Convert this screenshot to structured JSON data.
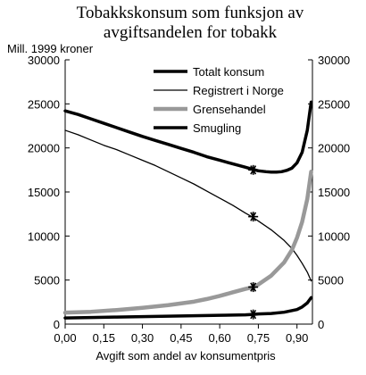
{
  "chart_data": {
    "type": "line",
    "title_lines": [
      "Tobakkskonsum som funksjon av",
      "avgiftsandelen for tobakk"
    ],
    "ylabel": "Mill. 1999 kroner",
    "xlabel": "Avgift som andel av konsumentpris",
    "xlim": [
      0,
      0.96
    ],
    "ylim": [
      0,
      30000
    ],
    "x_ticks": [
      0,
      0.15,
      0.3,
      0.45,
      0.6,
      0.75,
      0.9
    ],
    "x_tick_labels": [
      "0,00",
      "0,15",
      "0,30",
      "0,45",
      "0,60",
      "0,75",
      "0,90"
    ],
    "y_ticks": [
      0,
      5000,
      10000,
      15000,
      20000,
      25000,
      30000
    ],
    "y_tick_labels": [
      "0",
      "5000",
      "10000",
      "15000",
      "20000",
      "25000",
      "30000"
    ],
    "legend_position": "top-right",
    "series": [
      {
        "name": "Totalt konsum",
        "color": "#000000",
        "style": "thick",
        "x": [
          0,
          0.05,
          0.1,
          0.15,
          0.2,
          0.25,
          0.3,
          0.35,
          0.4,
          0.45,
          0.5,
          0.55,
          0.6,
          0.65,
          0.7,
          0.73,
          0.75,
          0.78,
          0.8,
          0.82,
          0.84,
          0.86,
          0.88,
          0.9,
          0.92,
          0.94,
          0.955
        ],
        "y": [
          24200,
          23800,
          23300,
          22800,
          22300,
          21800,
          21300,
          20850,
          20400,
          19950,
          19500,
          19000,
          18600,
          18200,
          17800,
          17550,
          17400,
          17300,
          17250,
          17250,
          17300,
          17450,
          17700,
          18300,
          19500,
          22000,
          25200
        ]
      },
      {
        "name": "Registrert i Norge",
        "color": "#000000",
        "style": "thin",
        "x": [
          0,
          0.05,
          0.1,
          0.15,
          0.2,
          0.25,
          0.3,
          0.35,
          0.4,
          0.45,
          0.5,
          0.55,
          0.6,
          0.65,
          0.7,
          0.73,
          0.75,
          0.8,
          0.85,
          0.88,
          0.9,
          0.92,
          0.94,
          0.955
        ],
        "y": [
          22000,
          21500,
          20900,
          20300,
          19800,
          19200,
          18600,
          18000,
          17300,
          16600,
          15900,
          15100,
          14300,
          13500,
          12600,
          12100,
          11700,
          10700,
          9500,
          8600,
          7800,
          6900,
          5900,
          4900
        ]
      },
      {
        "name": "Grensehandel",
        "color": "#999999",
        "style": "thick",
        "x": [
          0,
          0.1,
          0.2,
          0.3,
          0.4,
          0.5,
          0.55,
          0.6,
          0.65,
          0.7,
          0.73,
          0.75,
          0.8,
          0.85,
          0.88,
          0.9,
          0.92,
          0.94,
          0.955
        ],
        "y": [
          1300,
          1400,
          1600,
          1850,
          2150,
          2550,
          2850,
          3200,
          3600,
          4000,
          4200,
          4500,
          5500,
          7000,
          8400,
          9800,
          11600,
          14200,
          17300
        ]
      },
      {
        "name": "Smugling",
        "color": "#000000",
        "style": "thick",
        "x": [
          0,
          0.1,
          0.2,
          0.3,
          0.4,
          0.5,
          0.6,
          0.7,
          0.73,
          0.75,
          0.8,
          0.85,
          0.9,
          0.92,
          0.94,
          0.955
        ],
        "y": [
          700,
          750,
          800,
          850,
          900,
          950,
          1000,
          1050,
          1100,
          1150,
          1200,
          1350,
          1650,
          1950,
          2400,
          3000
        ]
      }
    ],
    "markers": {
      "symbol": "asterisk",
      "points": [
        {
          "x": 0.73,
          "y": 17500
        },
        {
          "x": 0.73,
          "y": 12200
        },
        {
          "x": 0.73,
          "y": 4200
        },
        {
          "x": 0.73,
          "y": 1100
        }
      ]
    }
  }
}
